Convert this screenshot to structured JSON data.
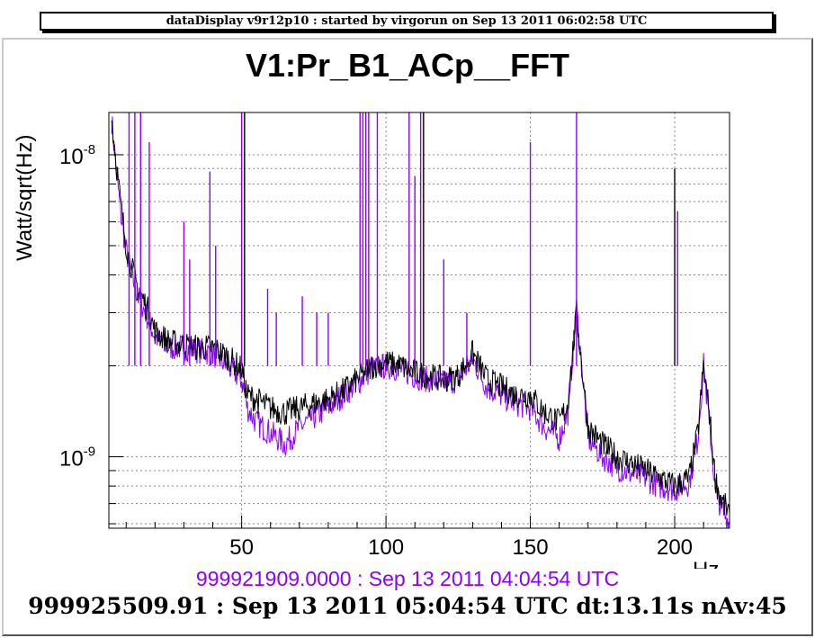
{
  "header": {
    "title": "dataDisplay v9r12p10 : started by virgorun on Sep 13 2011 06:02:58 UTC"
  },
  "footer": {
    "reference_label": "999921909.0000 : Sep 13 2011 04:04:54 UTC",
    "current_label": "999925509.91 : Sep 13 2011 05:04:54 UTC dt:13.11s nAv:45"
  },
  "chart_data": {
    "type": "line",
    "title": "V1:Pr_B1_ACp__FFT",
    "xlabel": "Hz",
    "ylabel": "Watt/sqrt(Hz)",
    "xlim": [
      4,
      219
    ],
    "ylim": [
      5.8e-10,
      1.38e-08
    ],
    "yscale": "log",
    "x_ticks": [
      "50",
      "100",
      "150",
      "200"
    ],
    "y_ticks": [
      "10^-9",
      "10^-8"
    ],
    "grid": true,
    "colors": {
      "current": "#000000",
      "reference": "#8b00ff"
    },
    "series": [
      {
        "label": "999925509.91 : Sep 13 2011 05:04:54 UTC",
        "color": "#000000",
        "x": [
          5,
          8,
          10,
          12,
          14,
          16,
          18,
          20,
          25,
          30,
          35,
          40,
          45,
          50,
          52,
          55,
          60,
          65,
          70,
          75,
          80,
          85,
          90,
          95,
          100,
          105,
          110,
          115,
          120,
          125,
          130,
          135,
          140,
          145,
          150,
          155,
          160,
          163,
          166,
          170,
          175,
          180,
          185,
          190,
          195,
          200,
          205,
          208,
          210,
          212,
          214,
          216,
          219
        ],
        "y": [
          1.3e-08,
          7e-09,
          5e-09,
          4.2e-09,
          3.6e-09,
          3.3e-09,
          3e-09,
          2.6e-09,
          2.4e-09,
          2.35e-09,
          2.3e-09,
          2.3e-09,
          2.15e-09,
          1.95e-09,
          1.6e-09,
          1.55e-09,
          1.45e-09,
          1.4e-09,
          1.45e-09,
          1.5e-09,
          1.55e-09,
          1.65e-09,
          1.8e-09,
          2e-09,
          2.05e-09,
          2e-09,
          1.9e-09,
          1.85e-09,
          1.8e-09,
          1.85e-09,
          2.2e-09,
          1.8e-09,
          1.7e-09,
          1.6e-09,
          1.6e-09,
          1.4e-09,
          1.3e-09,
          1.5e-09,
          3e-09,
          1.25e-09,
          1.1e-09,
          1e-09,
          9.5e-10,
          9e-10,
          8.5e-10,
          8e-10,
          8.5e-10,
          1.2e-09,
          2e-09,
          1.4e-09,
          8.5e-10,
          7.2e-10,
          6.5e-10
        ]
      },
      {
        "label": "999921909.0000 : Sep 13 2011 04:04:54 UTC",
        "color": "#8b00ff",
        "x": [
          5,
          8,
          10,
          12,
          14,
          16,
          18,
          20,
          25,
          30,
          35,
          40,
          45,
          50,
          52,
          55,
          60,
          65,
          70,
          75,
          80,
          85,
          90,
          95,
          100,
          105,
          110,
          115,
          120,
          125,
          130,
          135,
          140,
          145,
          150,
          155,
          160,
          163,
          166,
          170,
          175,
          180,
          185,
          190,
          195,
          200,
          205,
          208,
          210,
          212,
          214,
          216,
          219
        ],
        "y": [
          1.3e-08,
          6.5e-09,
          4.8e-09,
          4e-09,
          3.4e-09,
          3.1e-09,
          2.8e-09,
          2.5e-09,
          2.3e-09,
          2.3e-09,
          2.25e-09,
          2.2e-09,
          2e-09,
          1.8e-09,
          1.45e-09,
          1.3e-09,
          1.2e-09,
          1.1e-09,
          1.25e-09,
          1.35e-09,
          1.45e-09,
          1.6e-09,
          1.75e-09,
          1.95e-09,
          2e-09,
          1.95e-09,
          1.85e-09,
          1.8e-09,
          1.75e-09,
          1.8e-09,
          2.1e-09,
          1.7e-09,
          1.6e-09,
          1.5e-09,
          1.45e-09,
          1.25e-09,
          1.15e-09,
          1.4e-09,
          3.1e-09,
          1.15e-09,
          1e-09,
          9.2e-10,
          8.8e-10,
          8.5e-10,
          8e-10,
          7.8e-10,
          8.2e-10,
          1.15e-09,
          2e-09,
          1.3e-09,
          8e-10,
          6.8e-10,
          6e-10
        ]
      }
    ],
    "spikes": [
      {
        "x": 11,
        "y": 1.38e-08,
        "color": "#8b00ff"
      },
      {
        "x": 13,
        "y": 1.38e-08,
        "color": "#8b00ff"
      },
      {
        "x": 15,
        "y": 1.38e-08,
        "color": "#8b00ff"
      },
      {
        "x": 18,
        "y": 1.1e-08,
        "color": "#8b00ff"
      },
      {
        "x": 30,
        "y": 6e-09,
        "color": "#8b00ff"
      },
      {
        "x": 32,
        "y": 4.5e-09,
        "color": "#8b00ff"
      },
      {
        "x": 39,
        "y": 8.8e-09,
        "color": "#8b00ff"
      },
      {
        "x": 41,
        "y": 5e-09,
        "color": "#8b00ff"
      },
      {
        "x": 50,
        "y": 1.38e-08,
        "color": "#8b00ff"
      },
      {
        "x": 51,
        "y": 1.38e-08,
        "color": "#000000"
      },
      {
        "x": 59,
        "y": 3.6e-09,
        "color": "#8b00ff"
      },
      {
        "x": 62,
        "y": 3e-09,
        "color": "#8b00ff"
      },
      {
        "x": 71,
        "y": 3.4e-09,
        "color": "#8b00ff"
      },
      {
        "x": 76,
        "y": 3e-09,
        "color": "#8b00ff"
      },
      {
        "x": 80,
        "y": 3e-09,
        "color": "#8b00ff"
      },
      {
        "x": 91,
        "y": 1.38e-08,
        "color": "#8b00ff"
      },
      {
        "x": 92,
        "y": 1.38e-08,
        "color": "#8b00ff"
      },
      {
        "x": 93,
        "y": 1.38e-08,
        "color": "#8b00ff"
      },
      {
        "x": 94,
        "y": 1.38e-08,
        "color": "#8b00ff"
      },
      {
        "x": 97,
        "y": 1.38e-08,
        "color": "#8b00ff"
      },
      {
        "x": 108,
        "y": 1.38e-08,
        "color": "#8b00ff"
      },
      {
        "x": 110,
        "y": 8.5e-09,
        "color": "#8b00ff"
      },
      {
        "x": 112,
        "y": 1.38e-08,
        "color": "#8b00ff"
      },
      {
        "x": 113,
        "y": 1.38e-08,
        "color": "#000000"
      },
      {
        "x": 120,
        "y": 4.5e-09,
        "color": "#8b00ff"
      },
      {
        "x": 128,
        "y": 3e-09,
        "color": "#8b00ff"
      },
      {
        "x": 150,
        "y": 1.1e-08,
        "color": "#8b00ff"
      },
      {
        "x": 166,
        "y": 1.38e-08,
        "color": "#8b00ff"
      },
      {
        "x": 200,
        "y": 9e-09,
        "color": "#000000"
      },
      {
        "x": 201,
        "y": 6.5e-09,
        "color": "#8b00ff"
      }
    ]
  }
}
